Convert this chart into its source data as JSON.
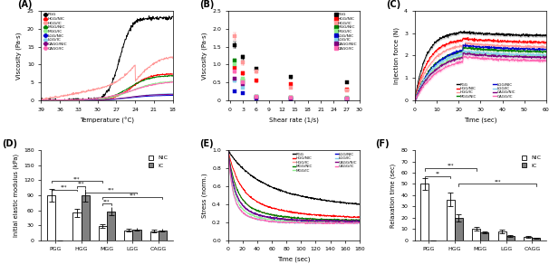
{
  "colors": {
    "PGG": "#000000",
    "HGG/NIC": "#FF0000",
    "HGG/IC": "#FF9999",
    "MGG/NIC": "#008000",
    "MGG/IC": "#90EE90",
    "LGG/NIC": "#0000CC",
    "LGG/IC": "#87CEEB",
    "CAGG/NIC": "#800080",
    "CAGG/IC": "#FF69B4"
  },
  "panelA": {
    "xlabel": "Temperature (°C)",
    "ylabel": "Viscosity (Pa·s)",
    "ylim": [
      0,
      25
    ],
    "xticks": [
      39,
      36,
      33,
      30,
      27,
      24,
      21,
      18
    ],
    "yticks": [
      0,
      5,
      10,
      15,
      20,
      25
    ]
  },
  "panelB": {
    "xlabel": "Shear rate (1/s)",
    "ylabel": "Viscosity (Pa·s)",
    "ylim": [
      0,
      2.5
    ],
    "xlim": [
      -0.5,
      30
    ],
    "xticks": [
      0,
      3,
      6,
      9,
      12,
      15,
      18,
      21,
      24,
      27,
      30
    ],
    "yticks": [
      0,
      0.5,
      1.0,
      1.5,
      2.0,
      2.5
    ],
    "shear_x": [
      1,
      3,
      6,
      14,
      27
    ],
    "visc": {
      "PGG": [
        1.55,
        1.2,
        0.88,
        0.65,
        0.5
      ],
      "HGG/NIC": [
        0.9,
        0.75,
        0.55,
        0.45,
        0.3
      ],
      "HGG/IC": [
        1.8,
        1.05,
        0.8,
        0.35,
        0.28
      ],
      "MGG/NIC": [
        1.1,
        0.55,
        0.1,
        0.08,
        0.07
      ],
      "MGG/IC": [
        1.0,
        0.6,
        0.12,
        0.09,
        0.08
      ],
      "LGG/NIC": [
        0.25,
        0.2,
        0.05,
        0.04,
        0.03
      ],
      "LGG/IC": [
        0.55,
        0.35,
        0.1,
        0.07,
        0.05
      ],
      "CAGG/NIC": [
        0.6,
        0.45,
        0.08,
        0.06,
        0.05
      ],
      "CAGG/IC": [
        0.8,
        0.5,
        0.1,
        0.08,
        0.06
      ]
    },
    "err": {
      "PGG": [
        0.08,
        0.06,
        0.04,
        0.03,
        0.02
      ],
      "HGG/NIC": [
        0.06,
        0.05,
        0.03,
        0.02,
        0.015
      ],
      "HGG/IC": [
        0.1,
        0.07,
        0.05,
        0.025,
        0.02
      ],
      "MGG/NIC": [
        0.07,
        0.04,
        0.01,
        0.008,
        0.006
      ],
      "MGG/IC": [
        0.06,
        0.04,
        0.01,
        0.008,
        0.006
      ],
      "LGG/NIC": [
        0.02,
        0.015,
        0.005,
        0.004,
        0.003
      ],
      "LGG/IC": [
        0.04,
        0.025,
        0.008,
        0.006,
        0.004
      ],
      "CAGG/NIC": [
        0.04,
        0.03,
        0.006,
        0.005,
        0.004
      ],
      "CAGG/IC": [
        0.05,
        0.035,
        0.008,
        0.006,
        0.005
      ]
    }
  },
  "panelC": {
    "xlabel": "Time (sec)",
    "ylabel": "Injection force (N)",
    "ylim": [
      0,
      4
    ],
    "xlim": [
      0,
      60
    ],
    "xticks": [
      0,
      10,
      20,
      30,
      40,
      50,
      60
    ],
    "yticks": [
      0,
      1,
      2,
      3,
      4
    ]
  },
  "panelD": {
    "ylabel": "Initial elastic modulus (kPa)",
    "ylim": [
      0,
      180
    ],
    "yticks": [
      0,
      30,
      60,
      90,
      120,
      150,
      180
    ],
    "categories": [
      "PGG",
      "HGG",
      "MGG",
      "LGG",
      "CAGG"
    ],
    "NIC": [
      90,
      55,
      28,
      20,
      18
    ],
    "IC": [
      0,
      90,
      58,
      22,
      20
    ],
    "NIC_err": [
      12,
      8,
      4,
      3,
      3
    ],
    "IC_err": [
      0,
      12,
      8,
      3,
      3
    ]
  },
  "panelE": {
    "xlabel": "Time (sec)",
    "ylabel": "Stress (norm.)",
    "ylim": [
      0,
      1.0
    ],
    "xlim": [
      0,
      180
    ],
    "xticks": [
      0,
      20,
      40,
      60,
      80,
      100,
      120,
      140,
      160,
      180
    ],
    "yticks": [
      0.0,
      0.2,
      0.4,
      0.6,
      0.8,
      1.0
    ]
  },
  "panelF": {
    "ylabel": "Relaxation time (sec)",
    "ylim": [
      0,
      80
    ],
    "yticks": [
      0,
      10,
      20,
      30,
      40,
      50,
      60,
      70,
      80
    ],
    "categories": [
      "PGG",
      "HGG",
      "MGG",
      "LGG",
      "CAGG"
    ],
    "NIC": [
      50,
      36,
      10,
      8,
      3
    ],
    "IC": [
      0,
      20,
      7,
      4,
      2
    ],
    "NIC_err": [
      5,
      6,
      1.5,
      1.5,
      0.5
    ],
    "IC_err": [
      0,
      3,
      1.0,
      0.8,
      0.4
    ]
  }
}
